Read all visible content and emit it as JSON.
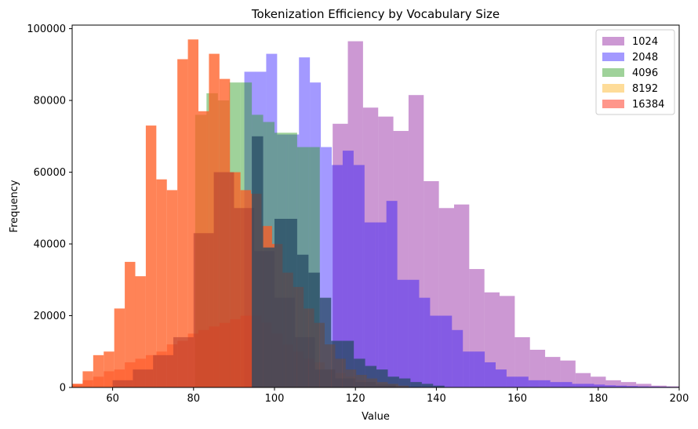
{
  "chart_data": {
    "type": "bar",
    "title": "Tokenization Efficiency by Vocabulary Size",
    "xlabel": "Value",
    "ylabel": "Frequency",
    "xlim": [
      50,
      200
    ],
    "ylim": [
      0,
      101000
    ],
    "xticks": [
      60,
      80,
      100,
      120,
      140,
      160,
      180,
      200
    ],
    "yticks": [
      0,
      20000,
      40000,
      60000,
      80000,
      100000
    ],
    "legend_position": "top-right",
    "series": [
      {
        "name": "1024",
        "color": "#9932a8",
        "alpha": 0.5,
        "x": [
          52.5,
          57.5,
          62.5,
          67.5,
          72.5,
          77.5,
          82.5,
          87.5,
          92.5,
          97.5,
          102.5,
          107.5,
          112.5,
          116.25,
          120,
          123.75,
          127.5,
          131.25,
          135,
          138.75,
          142.5,
          146.25,
          150,
          153.75,
          157.5,
          161.25,
          165,
          168.75,
          172.5,
          176.25,
          180,
          183.75,
          187.5,
          191.25,
          195,
          198.75
        ],
        "widths": [
          5,
          5,
          5,
          5,
          5,
          5,
          5,
          5,
          5,
          5,
          5,
          5,
          5,
          3.75,
          3.75,
          3.75,
          3.75,
          3.75,
          3.75,
          3.75,
          3.75,
          3.75,
          3.75,
          3.75,
          3.75,
          3.75,
          3.75,
          3.75,
          3.75,
          3.75,
          3.75,
          3.75,
          3.75,
          3.75,
          3.75,
          3.75
        ],
        "values": [
          0,
          0,
          0,
          0,
          0,
          0,
          0,
          0,
          0,
          0,
          0,
          0,
          0,
          73500,
          96500,
          78000,
          75500,
          71500,
          81500,
          57500,
          50000,
          51000,
          33000,
          26500,
          25500,
          14000,
          10500,
          8500,
          7500,
          4000,
          3000,
          2000,
          1500,
          1000,
          500,
          300
        ]
      },
      {
        "name": "2048",
        "color": "#1a00ff",
        "alpha": 0.4,
        "x": [
          53.4,
          56.1,
          58.8,
          61.5,
          64.2,
          66.9,
          69.6,
          72.3,
          75,
          77.7,
          80.4,
          83.1,
          85.8,
          88.5,
          91.2,
          93.9,
          96.6,
          99.3,
          102,
          104.7,
          107.4,
          110.1,
          112.8,
          115.5,
          118.2,
          120.9,
          123.6,
          126.3,
          129,
          131.7,
          134.4,
          137.1,
          139.8,
          142.5,
          145.2,
          147.9,
          150.6,
          153.3,
          156,
          158.7,
          161.4,
          164.1,
          166.8,
          169.5,
          172.2,
          174.9,
          177.6,
          180.3,
          183,
          185.7,
          188.4,
          191.1,
          193.8,
          196.5,
          199.2
        ],
        "widths": [
          2.7,
          2.7,
          2.7,
          2.7,
          2.7,
          2.7,
          2.7,
          2.7,
          2.7,
          2.7,
          2.7,
          2.7,
          2.7,
          2.7,
          2.7,
          2.7,
          2.7,
          2.7,
          2.7,
          2.7,
          2.7,
          2.7,
          2.7,
          2.7,
          2.7,
          2.7,
          2.7,
          2.7,
          2.7,
          2.7,
          2.7,
          2.7,
          2.7,
          2.7,
          2.7,
          2.7,
          2.7,
          2.7,
          2.7,
          2.7,
          2.7,
          2.7,
          2.7,
          2.7,
          2.7,
          2.7,
          2.7,
          2.7,
          2.7,
          2.7,
          2.7,
          2.7,
          2.7,
          2.7,
          2.7
        ],
        "values": [
          0,
          0,
          0,
          0,
          0,
          0,
          0,
          0,
          0,
          0,
          0,
          0,
          0,
          0,
          0,
          88000,
          88000,
          93000,
          70500,
          70500,
          92000,
          85000,
          67000,
          62000,
          66000,
          62000,
          46000,
          46000,
          52000,
          30000,
          30000,
          25000,
          20000,
          20000,
          16000,
          10000,
          10000,
          7000,
          5000,
          3000,
          3000,
          2000,
          2000,
          1500,
          1500,
          1000,
          1000,
          800,
          600,
          500,
          400,
          300,
          250,
          200,
          150
        ]
      },
      {
        "name": "4096",
        "color": "#2a9c1f",
        "alpha": 0.45,
        "x": [
          56.6,
          59.4,
          62.2,
          65,
          67.8,
          70.6,
          73.4,
          76.2,
          79,
          81.8,
          84.6,
          87.4,
          90.2,
          93,
          95.8,
          98.6,
          101.4,
          104.2,
          107,
          109.8,
          112.6,
          115.4,
          118.2,
          121,
          123.8,
          126.6,
          129.4,
          132.2,
          135,
          137.8,
          140.6,
          143.4,
          146.2,
          149
        ],
        "widths": [
          2.8,
          2.8,
          2.8,
          2.8,
          2.8,
          2.8,
          2.8,
          2.8,
          2.8,
          2.8,
          2.8,
          2.8,
          2.8,
          2.8,
          2.8,
          2.8,
          2.8,
          2.8,
          2.8,
          2.8,
          2.8,
          2.8,
          2.8,
          2.8,
          2.8,
          2.8,
          2.8,
          2.8,
          2.8,
          2.8,
          2.8,
          2.8,
          2.8,
          2.8
        ],
        "values": [
          0,
          0,
          0,
          0,
          0,
          0,
          0,
          0,
          0,
          76000,
          82000,
          80000,
          85000,
          85000,
          76000,
          74000,
          71000,
          71000,
          67000,
          67000,
          0,
          0,
          0,
          0,
          0,
          0,
          0,
          0,
          0,
          0,
          0,
          0,
          0,
          0
        ]
      },
      {
        "name": "8192",
        "color": "#fca800",
        "alpha": 0.4,
        "x": [
          51.5,
          54.5,
          57.5,
          60.5,
          63.5,
          66.5,
          69.5,
          72.5,
          75.5,
          78.5,
          81.5,
          84.5,
          87.5,
          90.5,
          93.5,
          96.5,
          99.5,
          102.5
        ],
        "widths": [
          3,
          3,
          3,
          3,
          3,
          3,
          3,
          3,
          3,
          3,
          3,
          3,
          3,
          3,
          3,
          3,
          3,
          3
        ],
        "values": [
          0,
          0,
          0,
          0,
          0,
          0,
          0,
          0,
          0,
          0,
          0,
          0,
          0,
          0,
          0,
          0,
          0,
          0
        ]
      },
      {
        "name": "16384",
        "color": "#ff2e17",
        "alpha": 0.5,
        "x": [
          51.3,
          53.9,
          56.5,
          59.1,
          61.7,
          64.3,
          66.9,
          69.5,
          72.1,
          74.7,
          77.3,
          79.9,
          82.5,
          85.1,
          87.7,
          90.3,
          92.9,
          95.5,
          98.1,
          100.7,
          103.3,
          105.9,
          108.5,
          111.1,
          113.7,
          116.3,
          118.9,
          121.5,
          124.1,
          126.7,
          129.3,
          131.9,
          134.5
        ],
        "widths": [
          2.6,
          2.6,
          2.6,
          2.6,
          2.6,
          2.6,
          2.6,
          2.6,
          2.6,
          2.6,
          2.6,
          2.6,
          2.6,
          2.6,
          2.6,
          2.6,
          2.6,
          2.6,
          2.6,
          2.6,
          2.6,
          2.6,
          2.6,
          2.6,
          2.6,
          2.6,
          2.6,
          2.6,
          2.6,
          2.6,
          2.6,
          2.6,
          2.6
        ],
        "values": [
          1000,
          2000,
          3000,
          4500,
          5000,
          7000,
          8000,
          9000,
          10000,
          12000,
          13000,
          15000,
          16000,
          17000,
          18000,
          19000,
          20000,
          20000,
          18000,
          15000,
          12000,
          10000,
          8000,
          7000,
          5000,
          4000,
          3000,
          2000,
          1500,
          1000,
          500,
          300,
          100
        ]
      },
      {
        "name": "",
        "color": "#ff5a1f",
        "alpha": 0.75,
        "legend": false,
        "x": [
          51.3,
          53.9,
          56.5,
          59.1,
          61.7,
          64.3,
          66.9,
          69.5,
          72.1,
          74.7,
          77.3,
          79.9,
          82.5,
          85.1,
          87.7,
          90.3,
          92.9,
          95.5,
          98.1,
          100.7,
          103.3,
          105.9,
          108.5,
          111.1,
          113.7,
          116.3,
          118.9,
          121.5,
          124.1,
          126.7,
          129.3,
          131.9
        ],
        "widths": [
          2.6,
          2.6,
          2.6,
          2.6,
          2.6,
          2.6,
          2.6,
          2.6,
          2.6,
          2.6,
          2.6,
          2.6,
          2.6,
          2.6,
          2.6,
          2.6,
          2.6,
          2.6,
          2.6,
          2.6,
          2.6,
          2.6,
          2.6,
          2.6,
          2.6,
          2.6,
          2.6,
          2.6,
          2.6,
          2.6,
          2.6,
          2.6
        ],
        "values": [
          1000,
          4500,
          9000,
          10000,
          22000,
          35000,
          31000,
          73000,
          58000,
          55000,
          91500,
          97000,
          77000,
          93000,
          86000,
          60000,
          55000,
          54000,
          45000,
          40000,
          32000,
          28000,
          22000,
          18000,
          12000,
          8000,
          5000,
          3500,
          2500,
          1500,
          1000,
          500
        ]
      },
      {
        "name": "",
        "color": "#b03a2e",
        "alpha": 0.55,
        "legend": false,
        "x": [
          62.5,
          67.5,
          72.5,
          77.5,
          82.5,
          87.5,
          92.5,
          97.5,
          102.5,
          107.5,
          112.5,
          117.5,
          122.5,
          127.5
        ],
        "widths": [
          5,
          5,
          5,
          5,
          5,
          5,
          5,
          5,
          5,
          5,
          5,
          5,
          5,
          5
        ],
        "values": [
          2000,
          5000,
          9000,
          14000,
          43000,
          60000,
          50000,
          38000,
          25000,
          14000,
          5000,
          2500,
          1500,
          800
        ]
      },
      {
        "name": "",
        "color": "#264a63",
        "alpha": 0.75,
        "legend": false,
        "x": [
          95.8,
          98.6,
          101.4,
          104.2,
          107,
          109.8,
          112.6,
          115.4,
          118.2,
          121,
          123.8,
          126.6,
          129.4,
          132.2,
          135,
          137.8,
          140.6
        ],
        "widths": [
          2.8,
          2.8,
          2.8,
          2.8,
          2.8,
          2.8,
          2.8,
          2.8,
          2.8,
          2.8,
          2.8,
          2.8,
          2.8,
          2.8,
          2.8,
          2.8,
          2.8
        ],
        "values": [
          70000,
          39000,
          47000,
          47000,
          37000,
          32000,
          25000,
          13000,
          13000,
          8000,
          6000,
          5000,
          3000,
          2500,
          1500,
          1000,
          500
        ]
      }
    ],
    "legend": [
      "1024",
      "2048",
      "4096",
      "8192",
      "16384"
    ]
  }
}
